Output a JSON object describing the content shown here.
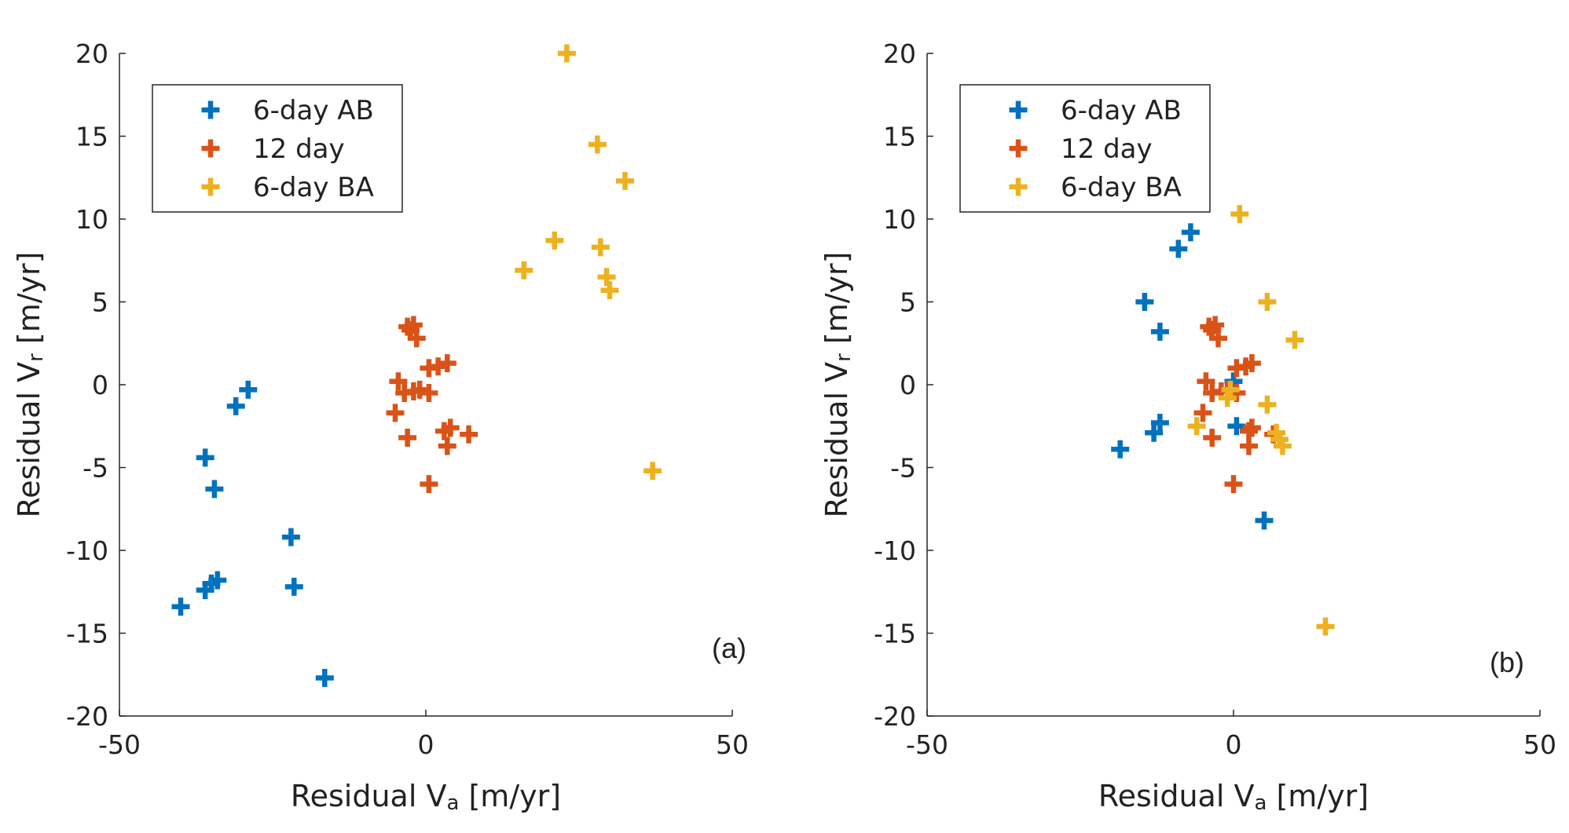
{
  "colors": {
    "series_1": "#0072BD",
    "series_2": "#D95319",
    "series_3": "#EDB120",
    "axis": "#262626",
    "text": "#222222"
  },
  "chart_data": [
    {
      "type": "scatter",
      "panel_label": "(a)",
      "xlabel": "Residual V",
      "xlabel_sub": "a",
      "xlabel_unit": "[m/yr]",
      "ylabel": "Residual V",
      "ylabel_sub": "r",
      "ylabel_unit": "[m/yr]",
      "xlim": [
        -50,
        50
      ],
      "ylim": [
        -20,
        20
      ],
      "xticks": [
        -50,
        0,
        50
      ],
      "yticks": [
        20,
        15,
        10,
        5,
        0,
        -5,
        -10,
        -15,
        -20
      ],
      "legend_position": "top-left",
      "series": [
        {
          "name": "6-day AB",
          "color": "#0072BD",
          "points": [
            [
              -40,
              -13.4
            ],
            [
              -36,
              -12.4
            ],
            [
              -35,
              -12.0
            ],
            [
              -34,
              -11.8
            ],
            [
              -36,
              -4.4
            ],
            [
              -34.5,
              -6.3
            ],
            [
              -31,
              -1.3
            ],
            [
              -29,
              -0.3
            ],
            [
              -22,
              -9.2
            ],
            [
              -21.5,
              -12.2
            ],
            [
              -16.5,
              -17.7
            ]
          ]
        },
        {
          "name": "12 day",
          "color": "#D95319",
          "points": [
            [
              -3,
              3.5
            ],
            [
              -2,
              3.6
            ],
            [
              -2.5,
              3.3
            ],
            [
              -1.5,
              2.8
            ],
            [
              0.5,
              1.0
            ],
            [
              2,
              1.1
            ],
            [
              3.5,
              1.3
            ],
            [
              -4.5,
              0.2
            ],
            [
              -3.5,
              -0.5
            ],
            [
              -2,
              -0.4
            ],
            [
              -1,
              -0.3
            ],
            [
              0.5,
              -0.5
            ],
            [
              -5,
              -1.7
            ],
            [
              -3,
              -3.2
            ],
            [
              3,
              -2.8
            ],
            [
              4,
              -2.6
            ],
            [
              3.5,
              -3.7
            ],
            [
              7,
              -3.0
            ],
            [
              0.5,
              -6.0
            ]
          ]
        },
        {
          "name": "6-day BA",
          "color": "#EDB120",
          "points": [
            [
              23,
              20.0
            ],
            [
              28,
              14.5
            ],
            [
              32.5,
              12.3
            ],
            [
              21,
              8.7
            ],
            [
              28.5,
              8.3
            ],
            [
              16,
              6.9
            ],
            [
              29.5,
              6.5
            ],
            [
              30,
              5.7
            ],
            [
              37,
              -5.2
            ]
          ]
        }
      ]
    },
    {
      "type": "scatter",
      "panel_label": "(b)",
      "xlabel": "Residual V",
      "xlabel_sub": "a",
      "xlabel_unit": "[m/yr]",
      "ylabel": "Residual V",
      "ylabel_sub": "r",
      "ylabel_unit": "[m/yr]",
      "xlim": [
        -50,
        50
      ],
      "ylim": [
        -20,
        20
      ],
      "xticks": [
        -50,
        0,
        50
      ],
      "yticks": [
        20,
        15,
        10,
        5,
        0,
        -5,
        -10,
        -15,
        -20
      ],
      "legend_position": "top-left",
      "series": [
        {
          "name": "6-day AB",
          "color": "#0072BD",
          "points": [
            [
              -7,
              9.2
            ],
            [
              -9,
              8.2
            ],
            [
              -14.5,
              5.0
            ],
            [
              -12,
              3.2
            ],
            [
              -12,
              -2.3
            ],
            [
              -13,
              -2.9
            ],
            [
              -18.5,
              -3.9
            ],
            [
              0,
              0.2
            ],
            [
              0.5,
              -2.5
            ],
            [
              5,
              -8.2
            ]
          ]
        },
        {
          "name": "12 day",
          "color": "#D95319",
          "points": [
            [
              -4,
              3.5
            ],
            [
              -3,
              3.6
            ],
            [
              -3.5,
              3.3
            ],
            [
              -2.5,
              2.8
            ],
            [
              0.5,
              1.0
            ],
            [
              2,
              1.1
            ],
            [
              3,
              1.3
            ],
            [
              -4.5,
              0.2
            ],
            [
              -3.5,
              -0.5
            ],
            [
              -2,
              -0.4
            ],
            [
              -1,
              -0.3
            ],
            [
              0.5,
              -0.5
            ],
            [
              -5,
              -1.7
            ],
            [
              -3.5,
              -3.2
            ],
            [
              2.5,
              -2.8
            ],
            [
              3,
              -2.6
            ],
            [
              2.5,
              -3.7
            ],
            [
              6.5,
              -3.0
            ],
            [
              0,
              -6.0
            ]
          ]
        },
        {
          "name": "6-day BA",
          "color": "#EDB120",
          "points": [
            [
              1,
              10.3
            ],
            [
              5.5,
              5.0
            ],
            [
              10,
              2.7
            ],
            [
              -0.5,
              -0.3
            ],
            [
              -1,
              -0.8
            ],
            [
              5.5,
              -1.2
            ],
            [
              -6,
              -2.5
            ],
            [
              7,
              -2.9
            ],
            [
              7.5,
              -3.3
            ],
            [
              8,
              -3.7
            ],
            [
              15,
              -14.6
            ]
          ]
        }
      ]
    }
  ]
}
